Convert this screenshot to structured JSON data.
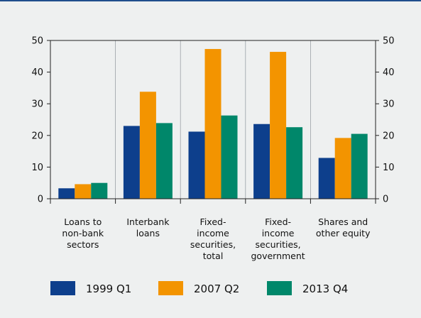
{
  "chart_data": {
    "type": "bar",
    "categories": [
      [
        "Loans to",
        "non-bank",
        "sectors"
      ],
      [
        "Interbank",
        "loans"
      ],
      [
        "Fixed-",
        "income",
        "securities,",
        "total"
      ],
      [
        "Fixed-",
        "income",
        "securities,",
        "government"
      ],
      [
        "Shares and",
        "other equity"
      ]
    ],
    "series": [
      {
        "name": "1999 Q1",
        "color": "#0d3f8c",
        "values": [
          3.3,
          23.0,
          21.2,
          23.6,
          12.9
        ]
      },
      {
        "name": "2007 Q2",
        "color": "#f39400",
        "values": [
          4.6,
          33.8,
          47.3,
          46.4,
          19.2
        ]
      },
      {
        "name": "2013 Q4",
        "color": "#00876a",
        "values": [
          5.0,
          23.9,
          26.3,
          22.6,
          20.5
        ]
      }
    ],
    "ylim": [
      0,
      50
    ],
    "yticks": [
      "0",
      "10",
      "20",
      "30",
      "40",
      "50"
    ],
    "grid": "vertical separators",
    "legend_position": "bottom"
  }
}
